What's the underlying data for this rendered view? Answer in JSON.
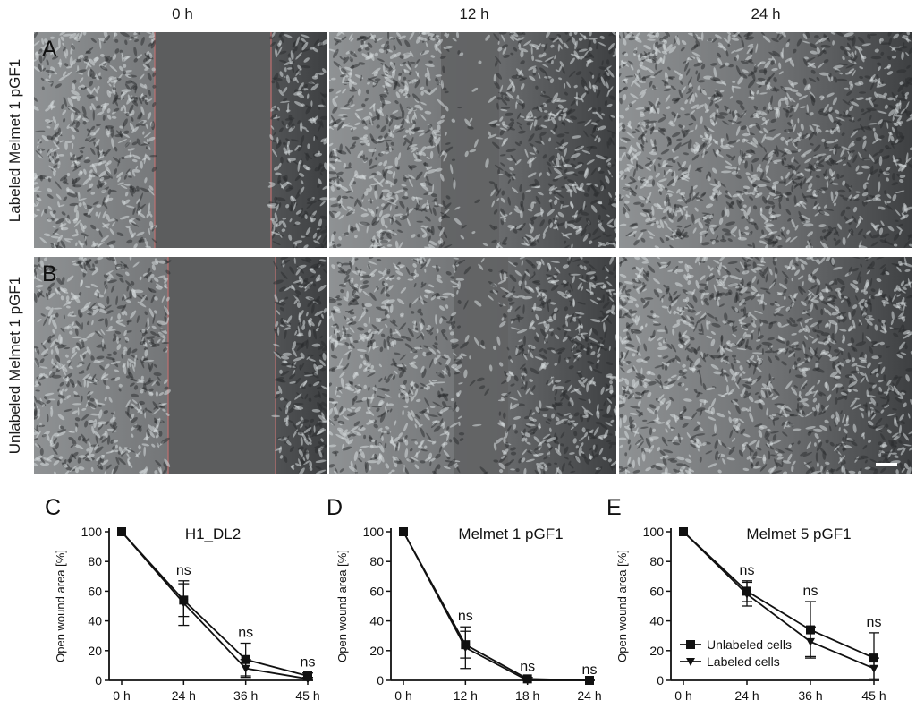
{
  "columns": [
    "0 h",
    "12 h",
    "24 h"
  ],
  "rows": [
    {
      "letter": "A",
      "label": "Labeled Melmet 1 pGF1"
    },
    {
      "letter": "B",
      "label": "Unlabeled Melmet 1 pGF1"
    }
  ],
  "chart_data": [
    {
      "letter": "C",
      "type": "line",
      "title": "H1_DL2",
      "ylabel": "Open wound area [%]",
      "xlabel": "",
      "categories": [
        "0 h",
        "24 h",
        "36 h",
        "45 h"
      ],
      "ylim": [
        0,
        100
      ],
      "yticks": [
        0,
        20,
        40,
        60,
        80,
        100
      ],
      "series": [
        {
          "marker": "square",
          "values": [
            100,
            54,
            14,
            3
          ],
          "err": [
            0,
            11,
            11,
            2
          ]
        },
        {
          "marker": "triangle",
          "values": [
            100,
            52,
            8,
            1
          ],
          "err": [
            0,
            15,
            6,
            1
          ]
        }
      ],
      "annotations": [
        "ns",
        "ns",
        "ns"
      ]
    },
    {
      "letter": "D",
      "type": "line",
      "title": "Melmet 1 pGF1",
      "ylabel": "Open wound area [%]",
      "xlabel": "",
      "categories": [
        "0 h",
        "12 h",
        "18 h",
        "24 h"
      ],
      "ylim": [
        0,
        100
      ],
      "yticks": [
        0,
        20,
        40,
        60,
        80,
        100
      ],
      "series": [
        {
          "marker": "square",
          "values": [
            100,
            24,
            1,
            0
          ],
          "err": [
            0,
            9,
            1,
            0
          ]
        },
        {
          "marker": "triangle",
          "values": [
            100,
            22,
            0,
            0
          ],
          "err": [
            0,
            14,
            1,
            0
          ]
        }
      ],
      "annotations": [
        "ns",
        "ns",
        "ns"
      ]
    },
    {
      "letter": "E",
      "type": "line",
      "title": "Melmet 5 pGF1",
      "ylabel": "Open wound area [%]",
      "xlabel": "",
      "categories": [
        "0 h",
        "24 h",
        "36 h",
        "45 h"
      ],
      "ylim": [
        0,
        100
      ],
      "yticks": [
        0,
        20,
        40,
        60,
        80,
        100
      ],
      "legend": {
        "position": "bottom-left",
        "entries": [
          "Unlabeled cells",
          "Labeled cells"
        ]
      },
      "series": [
        {
          "name": "Unlabeled cells",
          "marker": "square",
          "values": [
            100,
            60,
            34,
            15
          ],
          "err": [
            0,
            7,
            19,
            17
          ]
        },
        {
          "name": "Labeled cells",
          "marker": "triangle",
          "values": [
            100,
            58,
            26,
            8
          ],
          "err": [
            0,
            8,
            10,
            7
          ]
        }
      ],
      "annotations": [
        "ns",
        "ns",
        "ns"
      ]
    }
  ]
}
